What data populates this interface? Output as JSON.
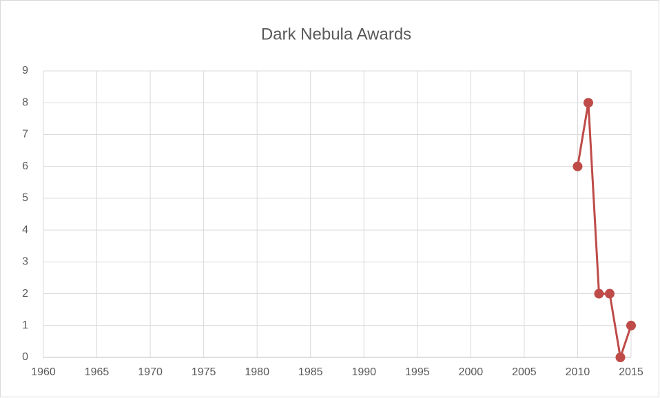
{
  "chart_data": {
    "type": "line",
    "title": "Dark Nebula Awards",
    "x": [
      2010,
      2011,
      2012,
      2013,
      2014,
      2015
    ],
    "values": [
      6,
      8,
      2,
      2,
      0,
      1
    ],
    "color": "#be4b48",
    "xlim": [
      1960,
      2015
    ],
    "xticks": [
      1960,
      1965,
      1970,
      1975,
      1980,
      1985,
      1990,
      1995,
      2000,
      2005,
      2010,
      2015
    ],
    "ylim": [
      0,
      9
    ],
    "yticks": [
      0,
      1,
      2,
      3,
      4,
      5,
      6,
      7,
      8,
      9
    ],
    "grid": true
  }
}
